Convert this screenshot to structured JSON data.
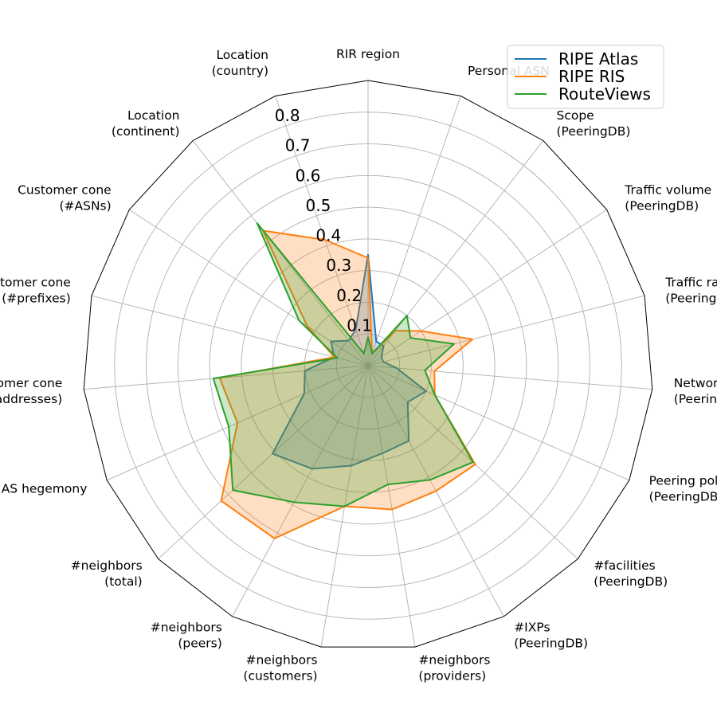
{
  "chart_data": {
    "type": "radar",
    "categories": [
      "RIR region",
      "Personal ASN",
      "Scope\n(PeeringDB)",
      "Traffic volume\n(PeeringDB)",
      "Traffic ratio\n(PeeringDB)",
      "Network type\n(PeeringDB)",
      "Peering policy\n(PeeringDB)",
      "#facilities\n(PeeringDB)",
      "#IXPs\n(PeeringDB)",
      "#neighbors\n(providers)",
      "#neighbors\n(customers)",
      "#neighbors\n(peers)",
      "#neighbors\n(total)",
      "AS hegemony",
      "Customer cone\n(#addresses)",
      "Customer cone\n(#prefixes)",
      "Customer cone\n(#ASNs)",
      "Location\n(continent)",
      "Location\n(country)"
    ],
    "rlim": [
      0,
      0.9
    ],
    "rticks": [
      0.1,
      0.2,
      0.3,
      0.4,
      0.5,
      0.6,
      0.7,
      0.8
    ],
    "grid": true,
    "legend_position": "top-right",
    "series": [
      {
        "name": "RIPE Atlas",
        "color": "#1f77b4",
        "values": [
          0.35,
          0.08,
          0.08,
          0.05,
          0.05,
          0.09,
          0.2,
          0.17,
          0.27,
          0.28,
          0.32,
          0.37,
          0.41,
          0.22,
          0.2,
          0.11,
          0.14,
          0.1,
          0.12
        ]
      },
      {
        "name": "RIPE RIS",
        "color": "#ff7f0e",
        "values": [
          0.34,
          0.04,
          0.14,
          0.2,
          0.34,
          0.21,
          0.23,
          0.46,
          0.45,
          0.46,
          0.45,
          0.62,
          0.63,
          0.45,
          0.47,
          0.11,
          0.23,
          0.54,
          0.42
        ]
      },
      {
        "name": "RouteViews",
        "color": "#2ca02c",
        "values": [
          0.09,
          0.04,
          0.2,
          0.16,
          0.28,
          0.18,
          0.23,
          0.45,
          0.41,
          0.38,
          0.45,
          0.49,
          0.58,
          0.48,
          0.49,
          0.1,
          0.26,
          0.57,
          0.04
        ]
      }
    ]
  }
}
